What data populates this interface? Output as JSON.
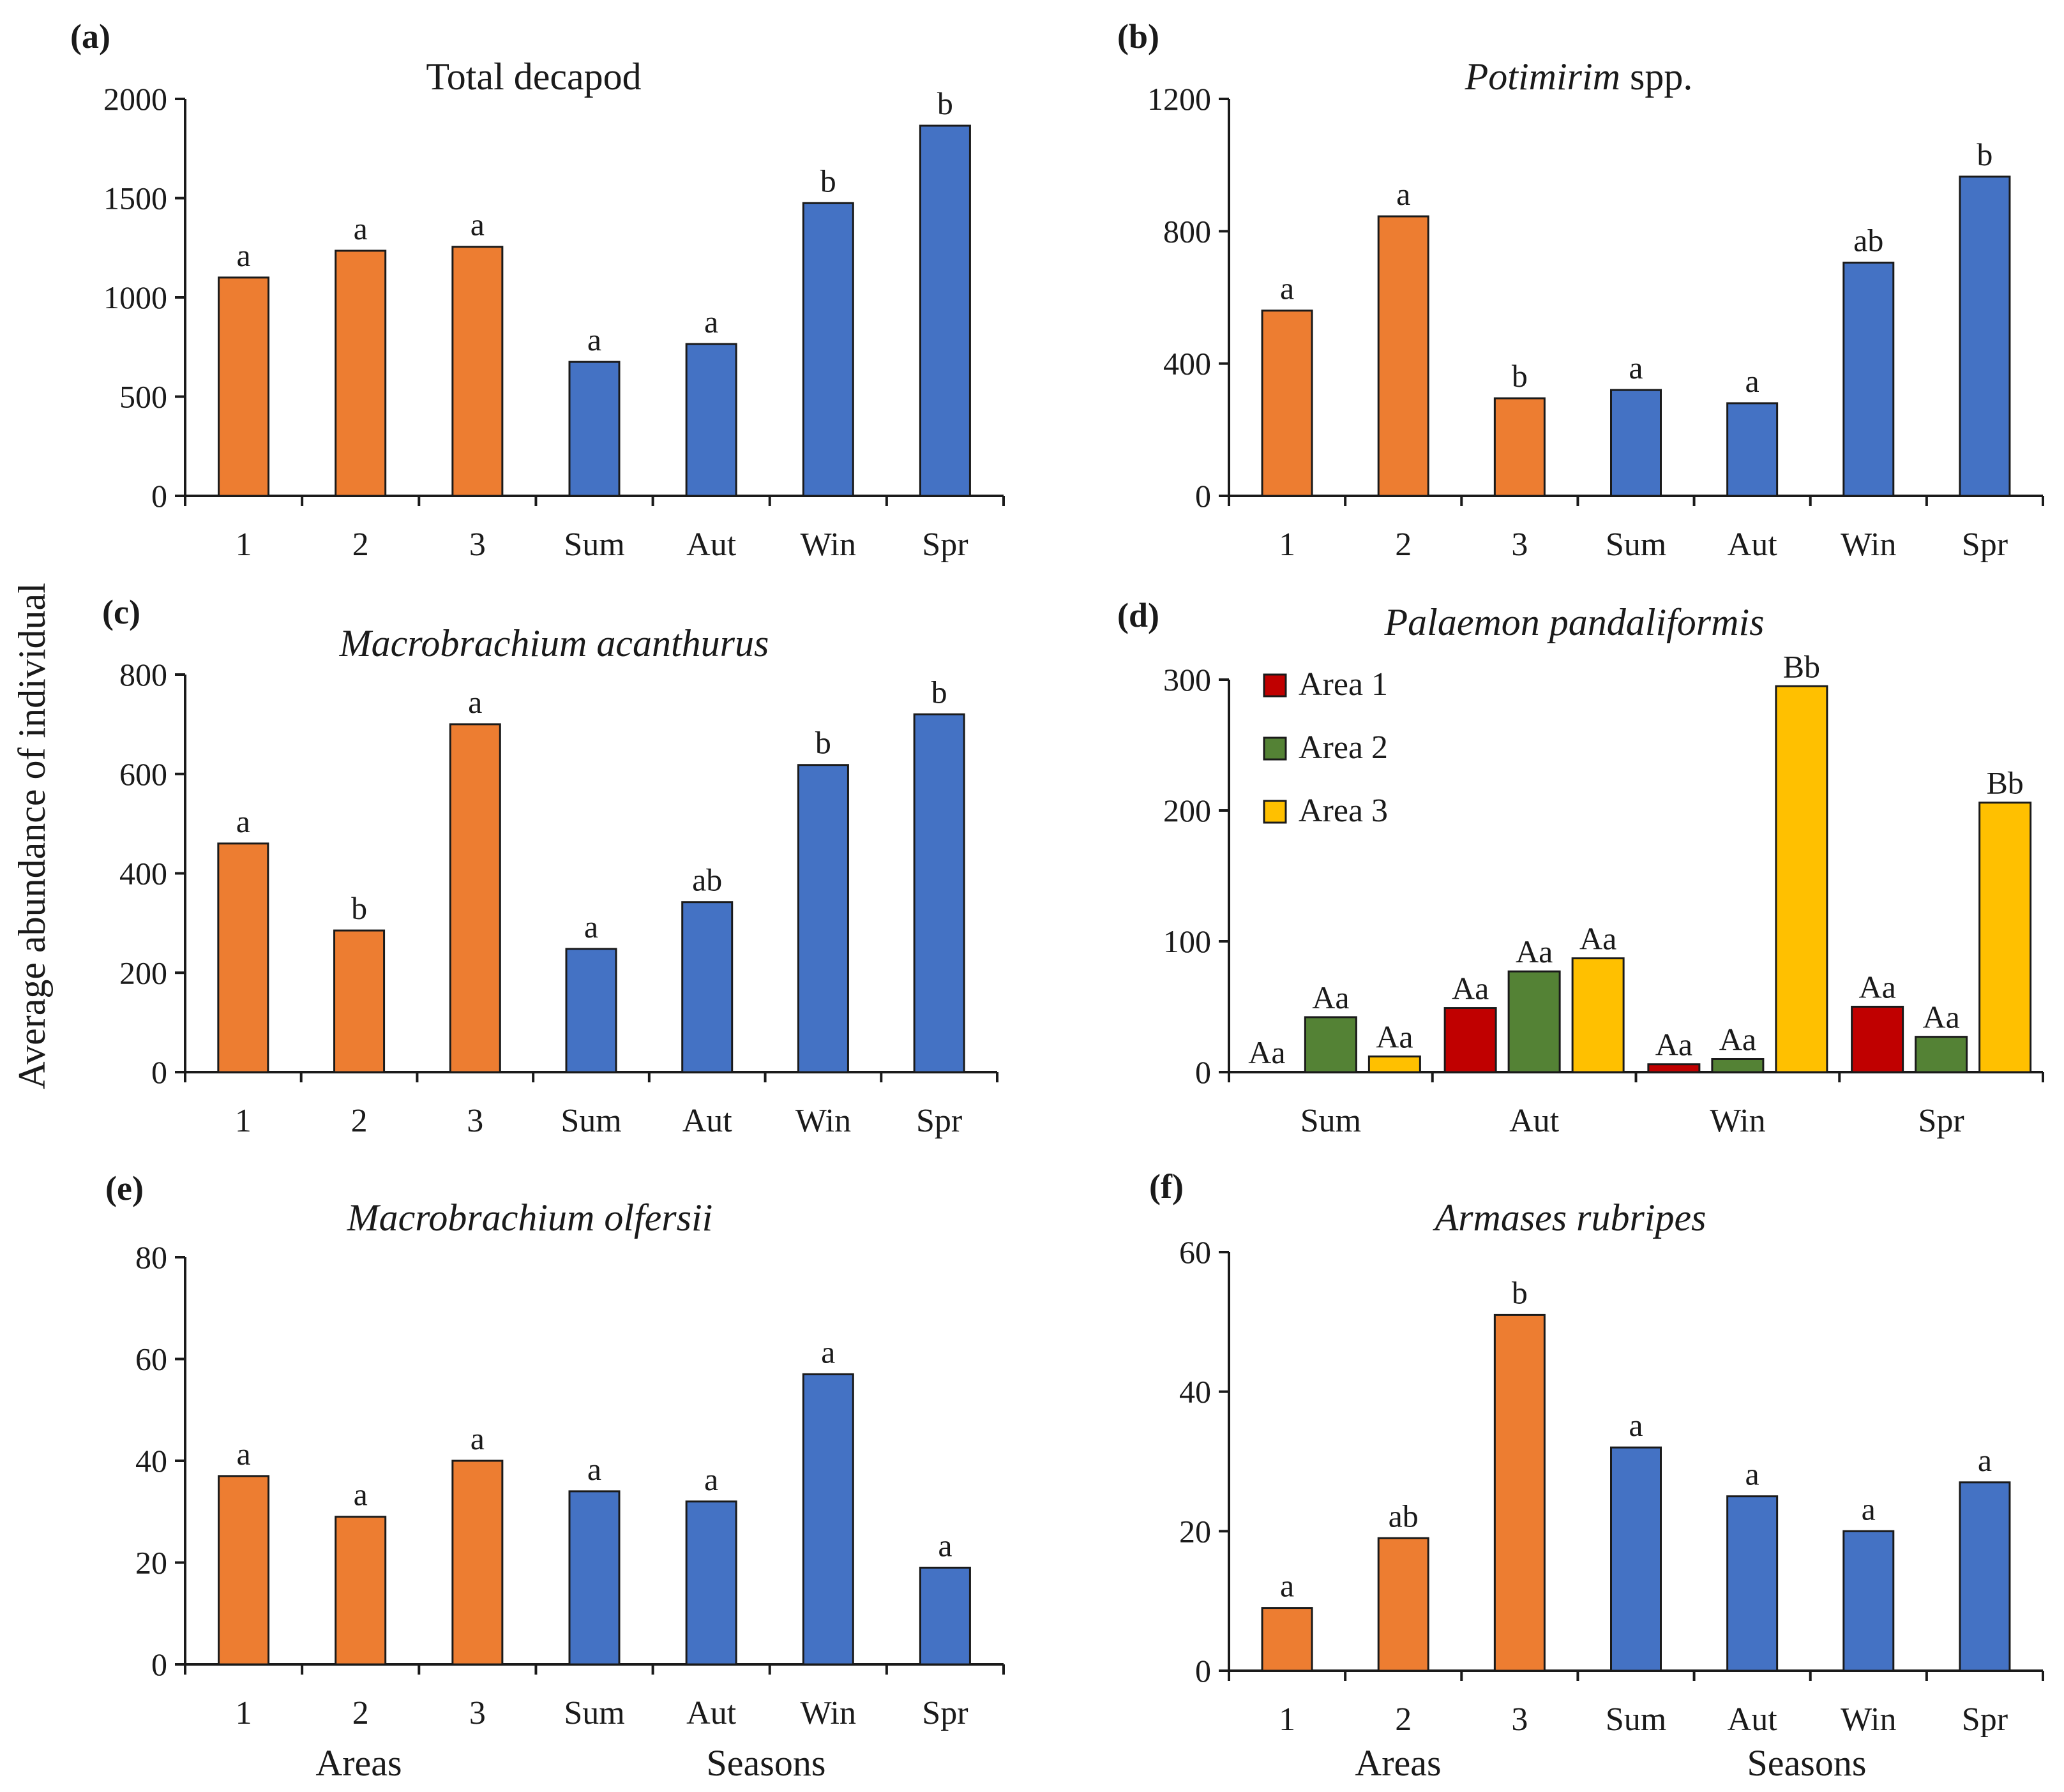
{
  "figure": {
    "ylabel": "Average abundance of individual",
    "group_labels": [
      "Areas",
      "Seasons"
    ]
  },
  "colors": {
    "areas": "#ED7D31",
    "seasons": "#4472C4",
    "area1": "#C00000",
    "area2": "#548235",
    "area3": "#FFC000"
  },
  "chart_data": [
    {
      "panel": "(a)",
      "type": "bar",
      "title": "Total decapod",
      "title_italic": false,
      "categories": [
        "1",
        "2",
        "3",
        "Sum",
        "Aut",
        "Win",
        "Spr"
      ],
      "values": [
        1100,
        1235,
        1255,
        675,
        765,
        1475,
        1865
      ],
      "labels": [
        "a",
        "a",
        "a",
        "a",
        "a",
        "b",
        "b"
      ],
      "yticks": [
        0,
        500,
        1000,
        1500,
        2000
      ],
      "ylim": [
        0,
        2000
      ]
    },
    {
      "panel": "(b)",
      "type": "bar",
      "title": "Potimirim",
      "title_suffix": " spp.",
      "title_italic": true,
      "categories": [
        "1",
        "2",
        "3",
        "Sum",
        "Aut",
        "Win",
        "Spr"
      ],
      "values": [
        560,
        845,
        295,
        320,
        280,
        705,
        965
      ],
      "labels": [
        "a",
        "a",
        "b",
        "a",
        "a",
        "ab",
        "b"
      ],
      "yticks": [
        0,
        400,
        800,
        1200
      ],
      "ylim": [
        0,
        1200
      ]
    },
    {
      "panel": "(c)",
      "type": "bar",
      "title": "Macrobrachium acanthurus",
      "title_italic": true,
      "categories": [
        "1",
        "2",
        "3",
        "Sum",
        "Aut",
        "Win",
        "Spr"
      ],
      "values": [
        460,
        285,
        700,
        248,
        342,
        618,
        720
      ],
      "labels": [
        "a",
        "b",
        "a",
        "a",
        "ab",
        "b",
        "b"
      ],
      "yticks": [
        0,
        200,
        400,
        600,
        800
      ],
      "ylim": [
        0,
        800
      ]
    },
    {
      "panel": "(d)",
      "type": "bar",
      "title": "Palaemon pandaliformis",
      "title_italic": true,
      "categories": [
        "Sum",
        "Aut",
        "Win",
        "Spr"
      ],
      "series": [
        {
          "name": "Area 1",
          "values": [
            0,
            49,
            6,
            50
          ],
          "labels": [
            "Aa",
            "Aa",
            "Aa",
            "Aa"
          ]
        },
        {
          "name": "Area 2",
          "values": [
            42,
            77,
            10,
            27
          ],
          "labels": [
            "Aa",
            "Aa",
            "Aa",
            "Aa"
          ]
        },
        {
          "name": "Area 3",
          "values": [
            12,
            87,
            295,
            206
          ],
          "labels": [
            "Aa",
            "Aa",
            "Bb",
            "Bb"
          ]
        }
      ],
      "yticks": [
        0,
        100,
        200,
        300
      ],
      "ylim": [
        0,
        300
      ],
      "legend": "top-left"
    },
    {
      "panel": "(e)",
      "type": "bar",
      "title": "Macrobrachium olfersii",
      "title_italic": true,
      "categories": [
        "1",
        "2",
        "3",
        "Sum",
        "Aut",
        "Win",
        "Spr"
      ],
      "values": [
        37,
        29,
        40,
        34,
        32,
        57,
        19
      ],
      "labels": [
        "a",
        "a",
        "a",
        "a",
        "a",
        "a",
        "a"
      ],
      "yticks": [
        0,
        20,
        40,
        60,
        80
      ],
      "ylim": [
        0,
        80
      ]
    },
    {
      "panel": "(f)",
      "type": "bar",
      "title": "Armases rubripes",
      "title_italic": true,
      "categories": [
        "1",
        "2",
        "3",
        "Sum",
        "Aut",
        "Win",
        "Spr"
      ],
      "values": [
        9,
        19,
        51,
        32,
        25,
        20,
        27
      ],
      "labels": [
        "a",
        "ab",
        "b",
        "a",
        "a",
        "a",
        "a"
      ],
      "yticks": [
        0,
        20,
        40,
        60
      ],
      "ylim": [
        0,
        60
      ]
    }
  ]
}
